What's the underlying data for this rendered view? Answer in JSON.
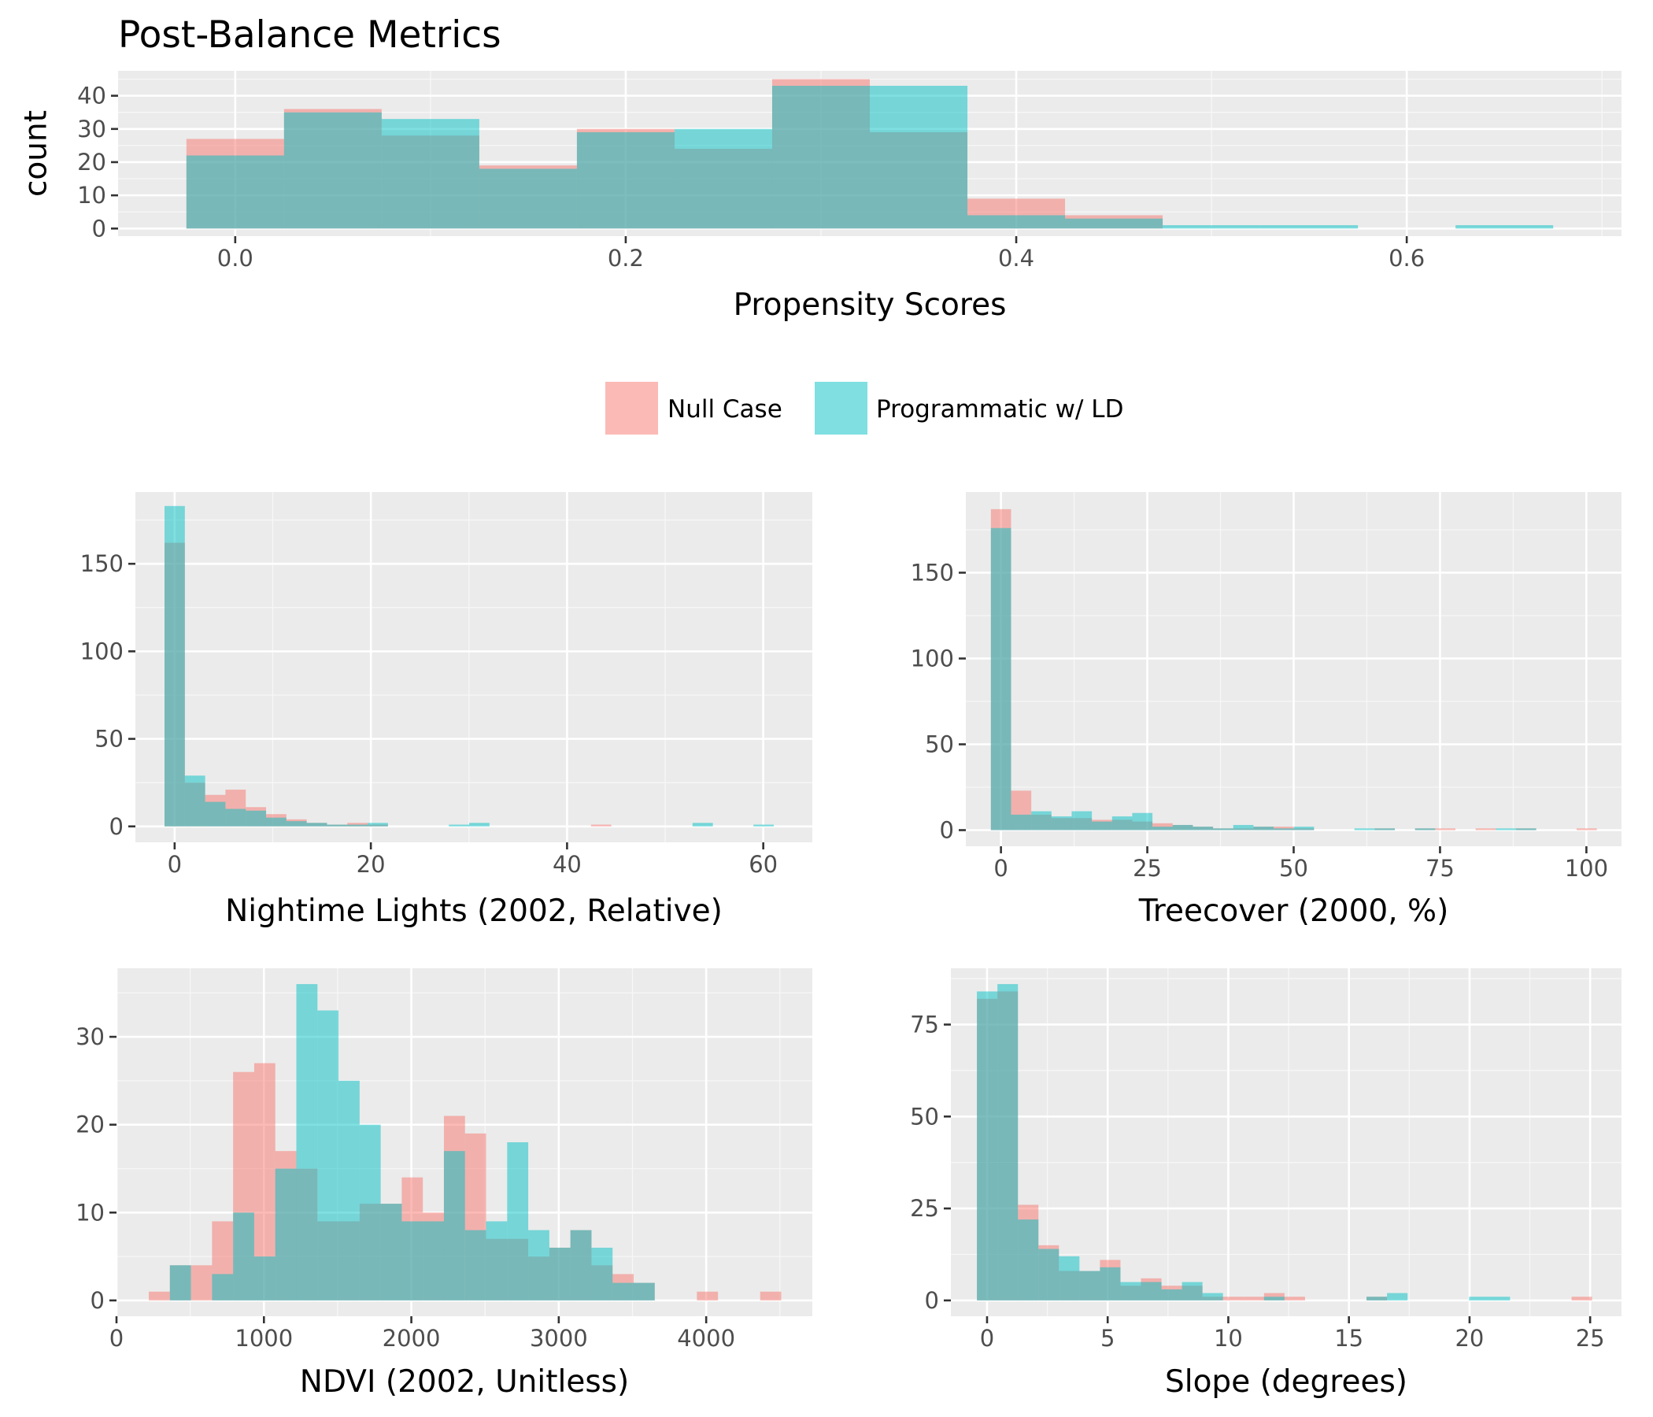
{
  "title": "Post-Balance Metrics",
  "colors": {
    "null_case": "#F8766D",
    "programmatic": "#00BFC4",
    "overlap": "#7CB8B3"
  },
  "legend": {
    "position": "center",
    "entries": [
      {
        "label": "Null Case",
        "color": "#F8766D"
      },
      {
        "label": "Programmatic w/ LD",
        "color": "#00BFC4"
      }
    ]
  },
  "chart_data": [
    {
      "id": "propensity",
      "type": "histogram",
      "xlabel": "Propensity Scores",
      "ylabel": "count",
      "xlim": [
        -0.06,
        0.71
      ],
      "ylim": [
        -2.3,
        47.5
      ],
      "x_ticks": [
        0.0,
        0.2,
        0.4,
        0.6
      ],
      "x_tick_labels": [
        "0.0",
        "0.2",
        "0.4",
        "0.6"
      ],
      "y_ticks": [
        0,
        10,
        20,
        30,
        40
      ],
      "y_tick_labels": [
        "0",
        "10",
        "20",
        "30",
        "40"
      ],
      "bin_width": 0.05,
      "bin_starts": [
        -0.025,
        0.025,
        0.075,
        0.125,
        0.175,
        0.225,
        0.275,
        0.325,
        0.375,
        0.425,
        0.475,
        0.525,
        0.575,
        0.625
      ],
      "series": [
        {
          "name": "Null Case",
          "values": [
            27,
            36,
            28,
            19,
            30,
            24,
            45,
            29,
            9,
            4,
            0,
            0,
            0,
            0
          ]
        },
        {
          "name": "Programmatic w/ LD",
          "values": [
            22,
            35,
            33,
            18,
            29,
            30,
            43,
            43,
            4,
            3,
            1,
            1,
            0,
            1
          ]
        }
      ]
    },
    {
      "id": "nightlights",
      "type": "histogram",
      "xlabel": "Nightime Lights (2002, Relative)",
      "ylabel": "",
      "xlim": [
        -4,
        65
      ],
      "ylim": [
        -9.1,
        191
      ],
      "x_ticks": [
        0,
        20,
        40,
        60
      ],
      "x_tick_labels": [
        "0",
        "20",
        "40",
        "60"
      ],
      "y_ticks": [
        0,
        50,
        100,
        150
      ],
      "y_tick_labels": [
        "0",
        "50",
        "100",
        "150"
      ],
      "bin_width": 2.07,
      "bin_starts": [
        -1.03,
        1.04,
        3.11,
        5.18,
        7.25,
        9.32,
        11.39,
        13.46,
        15.53,
        17.6,
        19.67,
        21.74,
        23.81,
        25.88,
        27.95,
        30.02,
        32.09,
        34.16,
        36.23,
        38.3,
        40.37,
        42.44,
        44.51,
        46.58,
        48.65,
        50.72,
        52.79,
        54.86,
        56.93,
        59.0
      ],
      "series": [
        {
          "name": "Null Case",
          "values": [
            162,
            25,
            18,
            21,
            11,
            7,
            4,
            2,
            1,
            2,
            1,
            0,
            0,
            0,
            0,
            0,
            0,
            0,
            0,
            0,
            0,
            1,
            0,
            0,
            0,
            0,
            0,
            0,
            0,
            0
          ]
        },
        {
          "name": "Programmatic w/ LD",
          "values": [
            183,
            29,
            14,
            10,
            9,
            5,
            3,
            2,
            1,
            1,
            2,
            0,
            0,
            0,
            1,
            2,
            0,
            0,
            0,
            0,
            0,
            0,
            0,
            0,
            0,
            0,
            2,
            0,
            0,
            1
          ]
        }
      ]
    },
    {
      "id": "treecover",
      "type": "histogram",
      "xlabel": "Treecover (2000, %)",
      "ylabel": "",
      "xlim": [
        -6,
        106
      ],
      "ylim": [
        -9.4,
        197
      ],
      "x_ticks": [
        0,
        25,
        50,
        75,
        100
      ],
      "x_tick_labels": [
        "0",
        "25",
        "50",
        "75",
        "100"
      ],
      "y_ticks": [
        0,
        50,
        100,
        150
      ],
      "y_tick_labels": [
        "0",
        "50",
        "100",
        "150"
      ],
      "bin_width": 3.45,
      "bin_starts": [
        -1.72,
        1.73,
        5.18,
        8.63,
        12.08,
        15.53,
        18.98,
        22.43,
        25.88,
        29.33,
        32.78,
        36.23,
        39.68,
        43.13,
        46.58,
        50.03,
        53.48,
        56.93,
        60.38,
        63.83,
        67.28,
        70.73,
        74.18,
        77.63,
        81.08,
        84.53,
        87.98,
        91.43,
        94.88,
        98.33
      ],
      "series": [
        {
          "name": "Null Case",
          "values": [
            187,
            23,
            9,
            7,
            7,
            6,
            6,
            5,
            4,
            3,
            2,
            1,
            1,
            2,
            2,
            1,
            0,
            0,
            0,
            1,
            0,
            1,
            1,
            0,
            1,
            0,
            1,
            0,
            0,
            1
          ]
        },
        {
          "name": "Programmatic w/ LD",
          "values": [
            176,
            9,
            11,
            8,
            11,
            5,
            8,
            10,
            2,
            3,
            2,
            1,
            3,
            2,
            1,
            2,
            0,
            0,
            1,
            1,
            0,
            1,
            0,
            0,
            0,
            1,
            1,
            0,
            0,
            0
          ]
        }
      ]
    },
    {
      "id": "ndvi",
      "type": "histogram",
      "xlabel": "NDVI (2002, Unitless)",
      "ylabel": "",
      "xlim": [
        0,
        4720
      ],
      "ylim": [
        -1.8,
        37.8
      ],
      "x_ticks": [
        0,
        1000,
        2000,
        3000,
        4000
      ],
      "x_tick_labels": [
        "0",
        "1000",
        "2000",
        "3000",
        "4000"
      ],
      "y_ticks": [
        0,
        10,
        20,
        30
      ],
      "y_tick_labels": [
        "0",
        "10",
        "20",
        "30"
      ],
      "bin_width": 143,
      "bin_starts": [
        219,
        362,
        505,
        648,
        791,
        934,
        1077,
        1220,
        1363,
        1506,
        1649,
        1792,
        1935,
        2078,
        2221,
        2364,
        2507,
        2650,
        2793,
        2936,
        3079,
        3222,
        3365,
        3508,
        3651,
        3794,
        3937,
        4080,
        4223,
        4366
      ],
      "series": [
        {
          "name": "Null Case",
          "values": [
            1,
            4,
            4,
            9,
            26,
            27,
            17,
            15,
            9,
            9,
            11,
            11,
            14,
            10,
            21,
            19,
            7,
            7,
            5,
            6,
            8,
            4,
            3,
            2,
            0,
            0,
            1,
            0,
            0,
            1
          ]
        },
        {
          "name": "Programmatic w/ LD",
          "values": [
            0,
            4,
            0,
            3,
            10,
            5,
            15,
            36,
            33,
            25,
            20,
            11,
            9,
            9,
            17,
            8,
            9,
            18,
            8,
            6,
            8,
            6,
            2,
            2,
            0,
            0,
            0,
            0,
            0,
            0
          ]
        }
      ]
    },
    {
      "id": "slope",
      "type": "histogram",
      "xlabel": "Slope (degrees)",
      "ylabel": "",
      "xlim": [
        -1.5,
        26.3
      ],
      "ylim": [
        -4.3,
        90.3
      ],
      "x_ticks": [
        0,
        5,
        10,
        15,
        20,
        25
      ],
      "x_tick_labels": [
        "0",
        "5",
        "10",
        "15",
        "20",
        "25"
      ],
      "y_ticks": [
        0,
        25,
        50,
        75
      ],
      "y_tick_labels": [
        "0",
        "25",
        "50",
        "75"
      ],
      "bin_width": 0.85,
      "bin_starts": [
        -0.42,
        0.43,
        1.28,
        2.13,
        2.98,
        3.83,
        4.68,
        5.53,
        6.38,
        7.23,
        8.08,
        8.93,
        9.78,
        10.63,
        11.48,
        12.33,
        13.18,
        14.03,
        14.88,
        15.73,
        16.58,
        17.43,
        18.28,
        19.13,
        19.98,
        20.83,
        21.68,
        22.53,
        23.38,
        24.23
      ],
      "series": [
        {
          "name": "Null Case",
          "values": [
            82,
            84,
            26,
            15,
            8,
            8,
            11,
            4,
            6,
            4,
            4,
            1,
            1,
            1,
            2,
            1,
            0,
            0,
            0,
            1,
            0,
            0,
            0,
            0,
            0,
            0,
            0,
            0,
            0,
            1
          ]
        },
        {
          "name": "Programmatic w/ LD",
          "values": [
            84,
            86,
            22,
            14,
            12,
            8,
            9,
            5,
            5,
            3,
            5,
            2,
            0,
            0,
            1,
            0,
            0,
            0,
            0,
            1,
            2,
            0,
            0,
            0,
            1,
            1,
            0,
            0,
            0,
            0
          ]
        }
      ]
    }
  ]
}
